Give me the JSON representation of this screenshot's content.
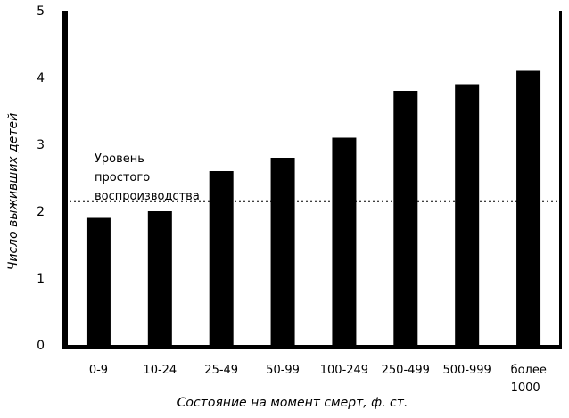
{
  "chart_data": {
    "type": "bar",
    "categories": [
      "0-9",
      "10-24",
      "25-49",
      "50-99",
      "100-249",
      "250-499",
      "500-999",
      [
        "более",
        "1000"
      ]
    ],
    "values": [
      1.9,
      2.0,
      2.6,
      2.8,
      3.1,
      3.8,
      3.9,
      4.1
    ],
    "xlabel": "Состояние на момент смерт, ф. ст.",
    "ylabel": "Число выживших детей",
    "ylim": [
      0,
      5
    ],
    "yticks": [
      0,
      1,
      2,
      3,
      4,
      5
    ],
    "grid": false,
    "bar_color": "#000000",
    "reference_line": {
      "value": 2.15,
      "style": "dotted",
      "label": [
        "Уровень",
        "простого",
        "воспроизводства"
      ]
    }
  }
}
